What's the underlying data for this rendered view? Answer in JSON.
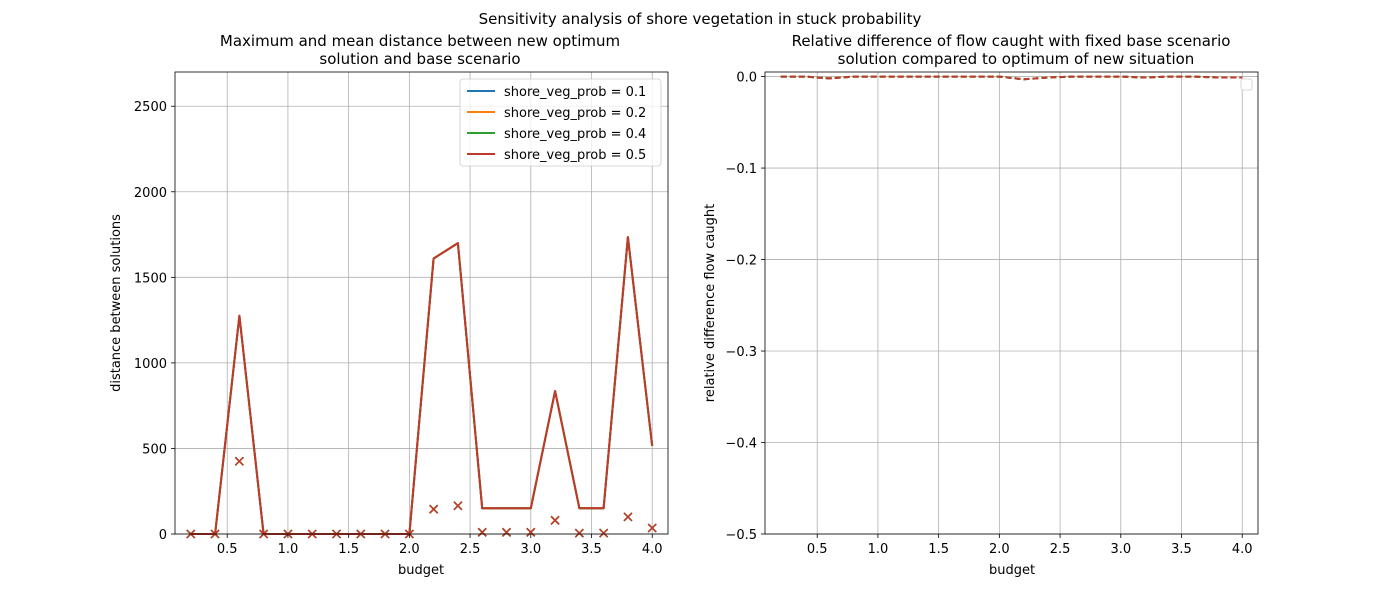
{
  "suptitle": "Sensitivity analysis of shore vegetation in stuck probability",
  "chart_data": [
    {
      "type": "line",
      "title_line1": "Maximum and mean distance between new optimum",
      "title_line2": "solution and base scenario",
      "xlabel": "budget",
      "ylabel": "distance between solutions",
      "xlim": [
        0.07,
        4.13
      ],
      "ylim": [
        0,
        2700
      ],
      "xticks": [
        0.5,
        1.0,
        1.5,
        2.0,
        2.5,
        3.0,
        3.5,
        4.0
      ],
      "xtick_labels": [
        "0.5",
        "1.0",
        "1.5",
        "2.0",
        "2.5",
        "3.0",
        "3.5",
        "4.0"
      ],
      "yticks": [
        0,
        500,
        1000,
        1500,
        2000,
        2500
      ],
      "ytick_labels": [
        "0",
        "500",
        "1000",
        "1500",
        "2000",
        "2500"
      ],
      "grid": true,
      "legend_position": "upper-right",
      "x": [
        0.2,
        0.4,
        0.6,
        0.8,
        1.0,
        1.2,
        1.4,
        1.6,
        1.8,
        2.0,
        2.2,
        2.4,
        2.6,
        2.8,
        3.0,
        3.2,
        3.4,
        3.6,
        3.8,
        4.0
      ],
      "series": [
        {
          "name": "shore_veg_prob = 0.1",
          "color": "#1f77b4",
          "max_values": [
            0,
            0,
            1275,
            0,
            0,
            0,
            0,
            0,
            0,
            0,
            1610,
            1700,
            150,
            150,
            150,
            835,
            150,
            150,
            1735,
            515
          ],
          "mean_values": [
            0,
            0,
            425,
            0,
            0,
            0,
            0,
            0,
            0,
            0,
            145,
            165,
            10,
            10,
            10,
            80,
            5,
            5,
            100,
            35
          ]
        },
        {
          "name": "shore_veg_prob = 0.2",
          "color": "#ff7f0e",
          "max_values": [
            0,
            0,
            1275,
            0,
            0,
            0,
            0,
            0,
            0,
            0,
            1610,
            1700,
            150,
            150,
            150,
            835,
            150,
            150,
            1735,
            515
          ],
          "mean_values": [
            0,
            0,
            425,
            0,
            0,
            0,
            0,
            0,
            0,
            0,
            145,
            165,
            10,
            10,
            10,
            80,
            5,
            5,
            100,
            35
          ]
        },
        {
          "name": "shore_veg_prob = 0.4",
          "color": "#2ca02c",
          "max_values": [
            0,
            0,
            1275,
            0,
            0,
            0,
            0,
            0,
            0,
            0,
            1610,
            1700,
            150,
            150,
            150,
            835,
            150,
            150,
            1735,
            515
          ],
          "mean_values": [
            0,
            0,
            425,
            0,
            0,
            0,
            0,
            0,
            0,
            0,
            145,
            165,
            10,
            10,
            10,
            80,
            5,
            5,
            100,
            35
          ]
        },
        {
          "name": "shore_veg_prob = 0.5",
          "color": "#c0392b",
          "max_values": [
            0,
            0,
            1275,
            0,
            0,
            0,
            0,
            0,
            0,
            0,
            1610,
            1700,
            150,
            150,
            150,
            835,
            150,
            150,
            1735,
            515
          ],
          "mean_values": [
            0,
            0,
            425,
            0,
            0,
            0,
            0,
            0,
            0,
            0,
            145,
            165,
            10,
            10,
            10,
            80,
            5,
            5,
            100,
            35
          ]
        }
      ]
    },
    {
      "type": "line",
      "title_line1": "Relative difference of flow caught with fixed base scenario",
      "title_line2": "solution compared to optimum of new situation",
      "xlabel": "budget",
      "ylabel": "relative difference flow caught",
      "xlim": [
        0.07,
        4.13
      ],
      "ylim": [
        -0.5,
        0.005
      ],
      "xticks": [
        0.5,
        1.0,
        1.5,
        2.0,
        2.5,
        3.0,
        3.5,
        4.0
      ],
      "xtick_labels": [
        "0.5",
        "1.0",
        "1.5",
        "2.0",
        "2.5",
        "3.0",
        "3.5",
        "4.0"
      ],
      "yticks": [
        0.0,
        -0.1,
        -0.2,
        -0.3,
        -0.4,
        -0.5
      ],
      "ytick_labels": [
        "0.0",
        "−0.1",
        "−0.2",
        "−0.3",
        "−0.4",
        "−0.5"
      ],
      "grid": true,
      "legend_position": "upper-right",
      "x": [
        0.2,
        0.4,
        0.6,
        0.8,
        1.0,
        1.2,
        1.4,
        1.6,
        1.8,
        2.0,
        2.2,
        2.4,
        2.6,
        2.8,
        3.0,
        3.2,
        3.4,
        3.6,
        3.8,
        4.0
      ],
      "series": [
        {
          "color": "#1f77b4",
          "values": [
            0,
            0,
            -0.002,
            0,
            0,
            0,
            0,
            0,
            0,
            0,
            -0.003,
            -0.001,
            0,
            0,
            0,
            -0.001,
            0,
            0,
            -0.001,
            -0.001
          ]
        },
        {
          "color": "#ff7f0e",
          "values": [
            0,
            0,
            -0.002,
            0,
            0,
            0,
            0,
            0,
            0,
            0,
            -0.003,
            -0.001,
            0,
            0,
            0,
            -0.001,
            0,
            0,
            -0.001,
            -0.001
          ]
        },
        {
          "color": "#2ca02c",
          "values": [
            0,
            0,
            -0.002,
            0,
            0,
            0,
            0,
            0,
            0,
            0,
            -0.003,
            -0.001,
            0,
            0,
            0,
            -0.001,
            0,
            0,
            -0.001,
            -0.001
          ]
        },
        {
          "color": "#c0392b",
          "values": [
            0,
            0,
            -0.002,
            0,
            0,
            0,
            0,
            0,
            0,
            0,
            -0.003,
            -0.001,
            0,
            0,
            0,
            -0.001,
            0,
            0,
            -0.001,
            -0.001
          ]
        }
      ]
    }
  ]
}
